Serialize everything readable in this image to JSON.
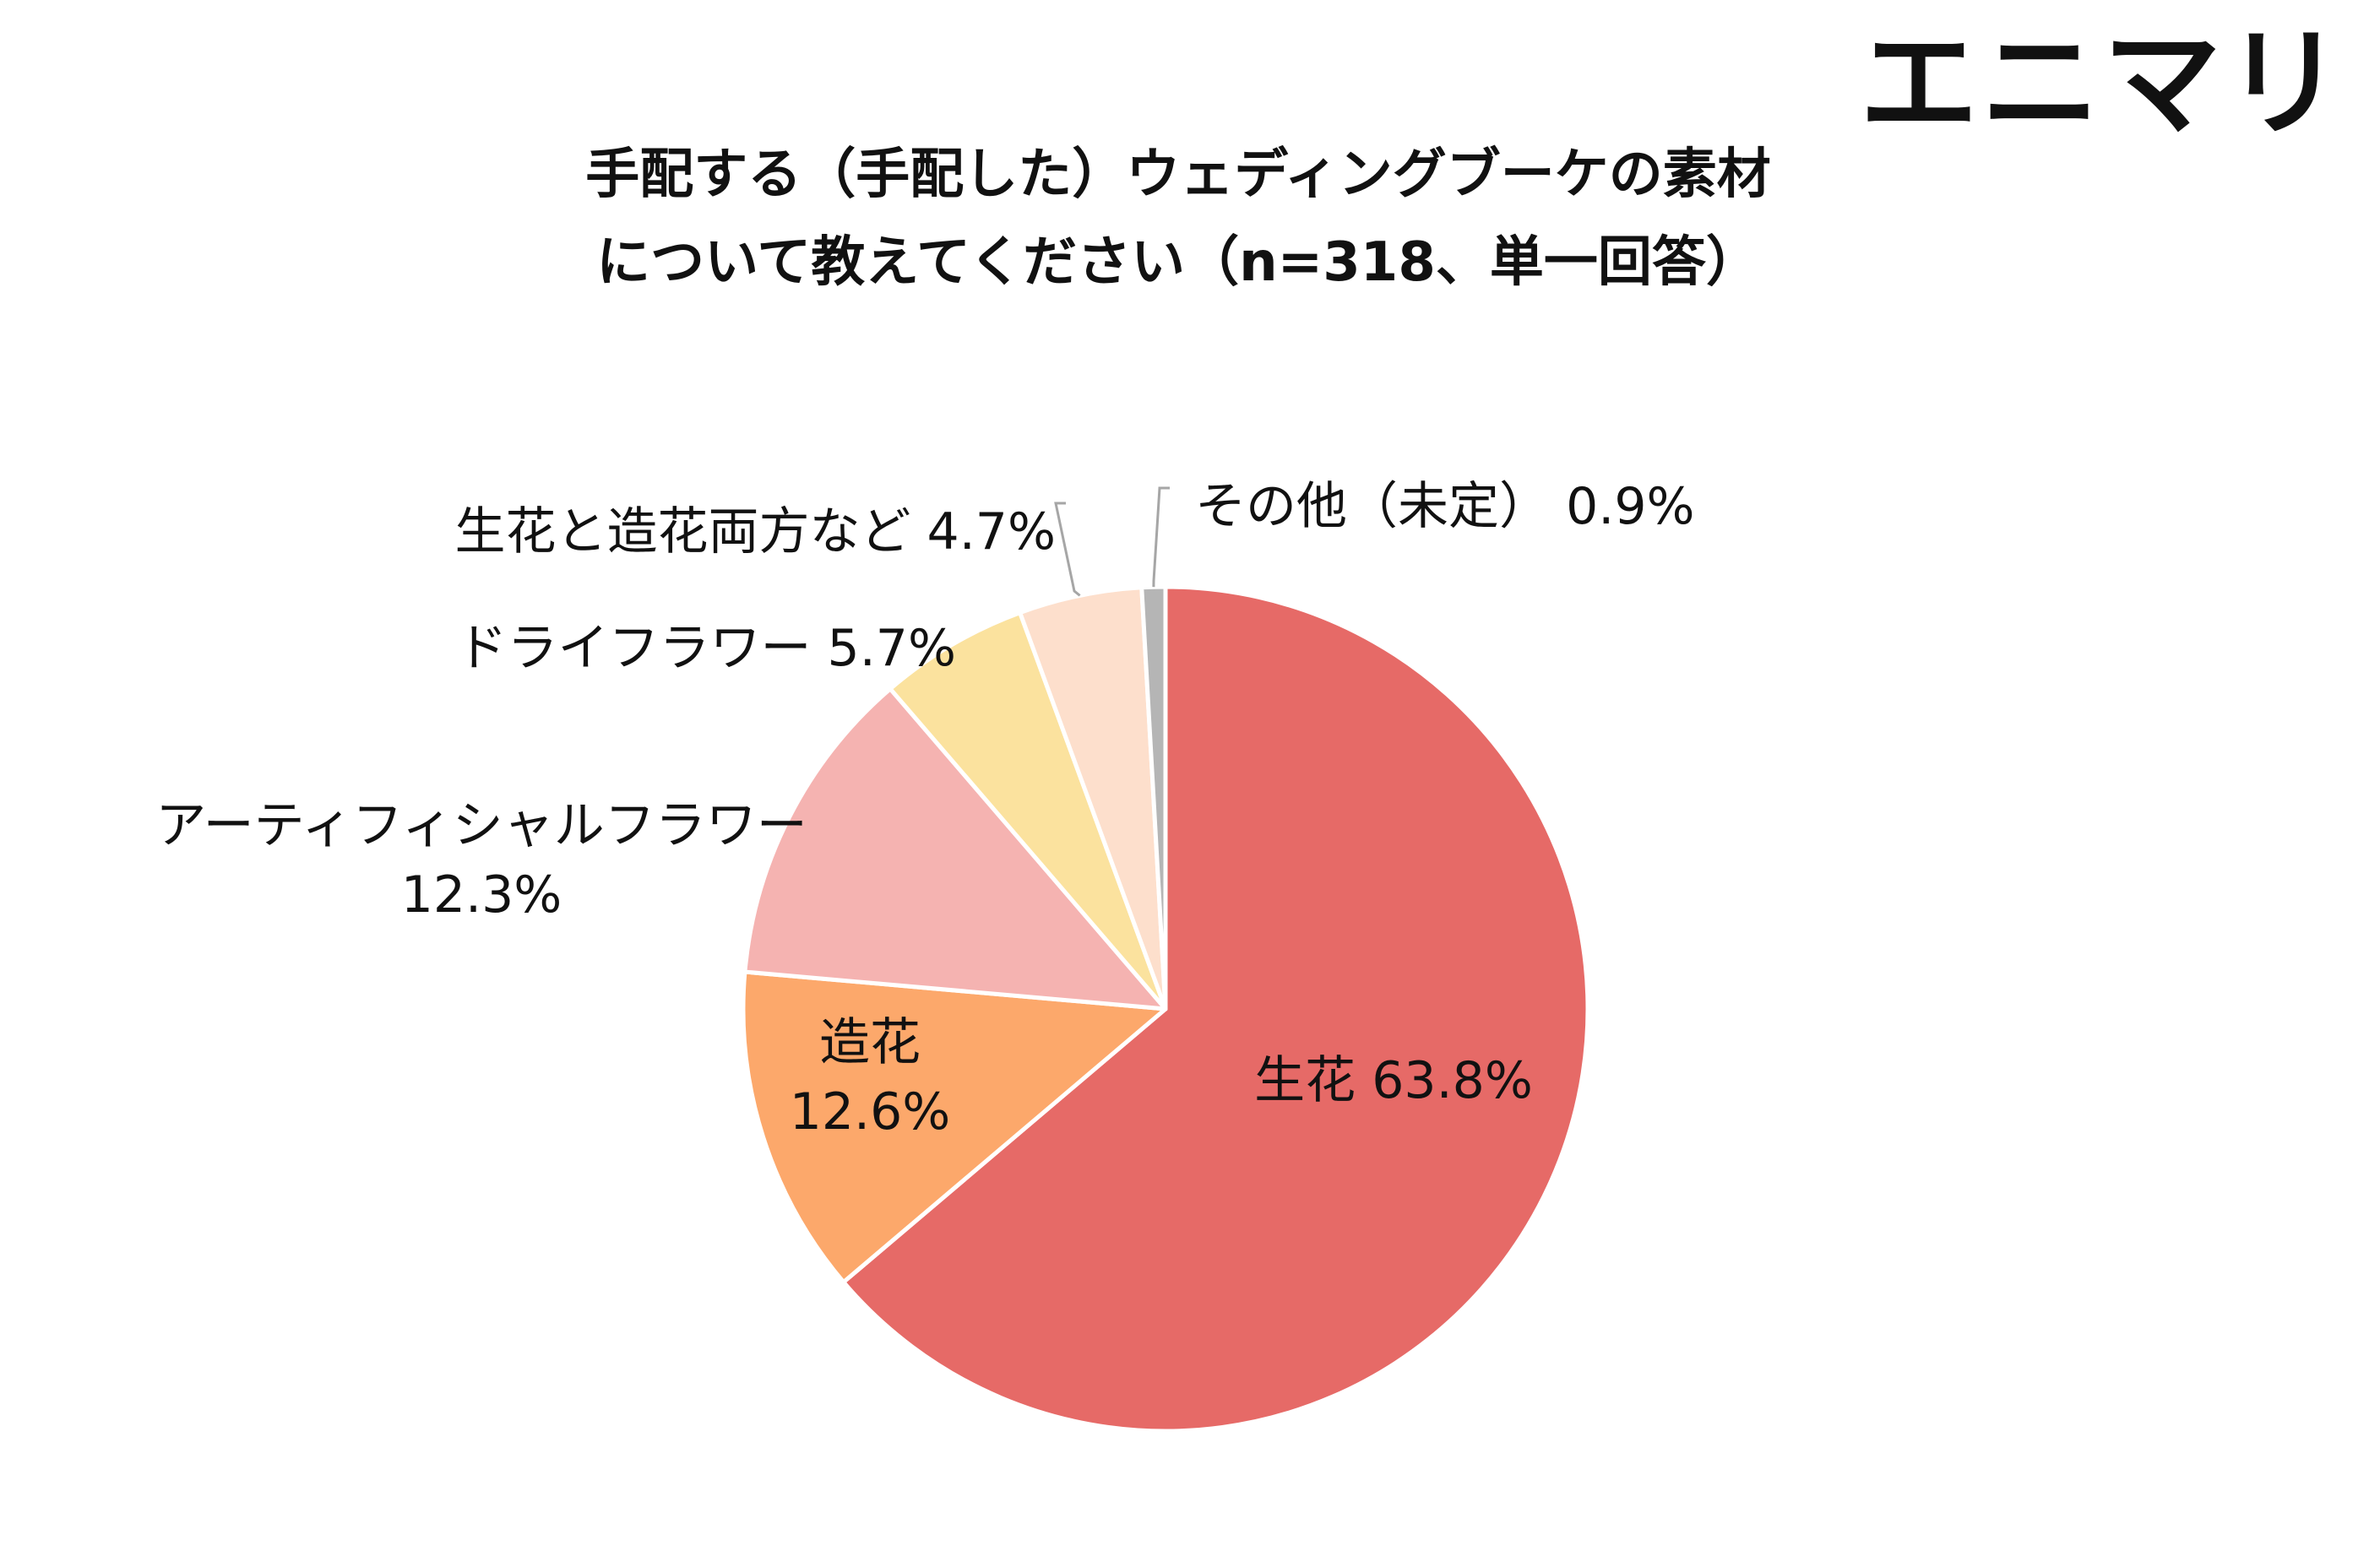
{
  "brand": {
    "logo_text": "エニマリ"
  },
  "chart_data": {
    "type": "pie",
    "title": "手配する（手配した）ウェディングブーケの素材\nについて教えてください（n=318、単一回答）",
    "title_lines": [
      "手配する（手配した）ウェディングブーケの素材",
      "について教えてください（n=318、単一回答）"
    ],
    "start_angle_deg": 0,
    "direction": "clockwise",
    "slices": [
      {
        "label": "生花",
        "value": 63.8,
        "value_text": "63.8%",
        "color": "#E66A67",
        "label_position": "inside",
        "label_lines": [
          "生花 63.8%"
        ]
      },
      {
        "label": "造花",
        "value": 12.6,
        "value_text": "12.6%",
        "color": "#FCA86B",
        "label_position": "inside",
        "label_lines": [
          "造花",
          "12.6%"
        ]
      },
      {
        "label": "アーティフィシャルフラワー",
        "value": 12.3,
        "value_text": "12.3%",
        "color": "#F5B3B1",
        "label_position": "outside",
        "label_lines": [
          "アーティフィシャルフラワー",
          "12.3%"
        ]
      },
      {
        "label": "ドライフラワー",
        "value": 5.7,
        "value_text": "5.7%",
        "color": "#FBE29E",
        "label_position": "outside",
        "label_lines": [
          "ドライフラワー 5.7%"
        ]
      },
      {
        "label": "生花と造花両方など",
        "value": 4.7,
        "value_text": "4.7%",
        "color": "#FDDFCC",
        "label_position": "outside-leader",
        "label_lines": [
          "生花と造花両方など 4.7%"
        ]
      },
      {
        "label": "その他（未定）",
        "value": 0.9,
        "value_text": "0.9%",
        "color": "#B5B5B5",
        "label_position": "outside-leader",
        "label_lines": [
          "その他（未定） 0.9%"
        ]
      }
    ],
    "legend": "none"
  }
}
